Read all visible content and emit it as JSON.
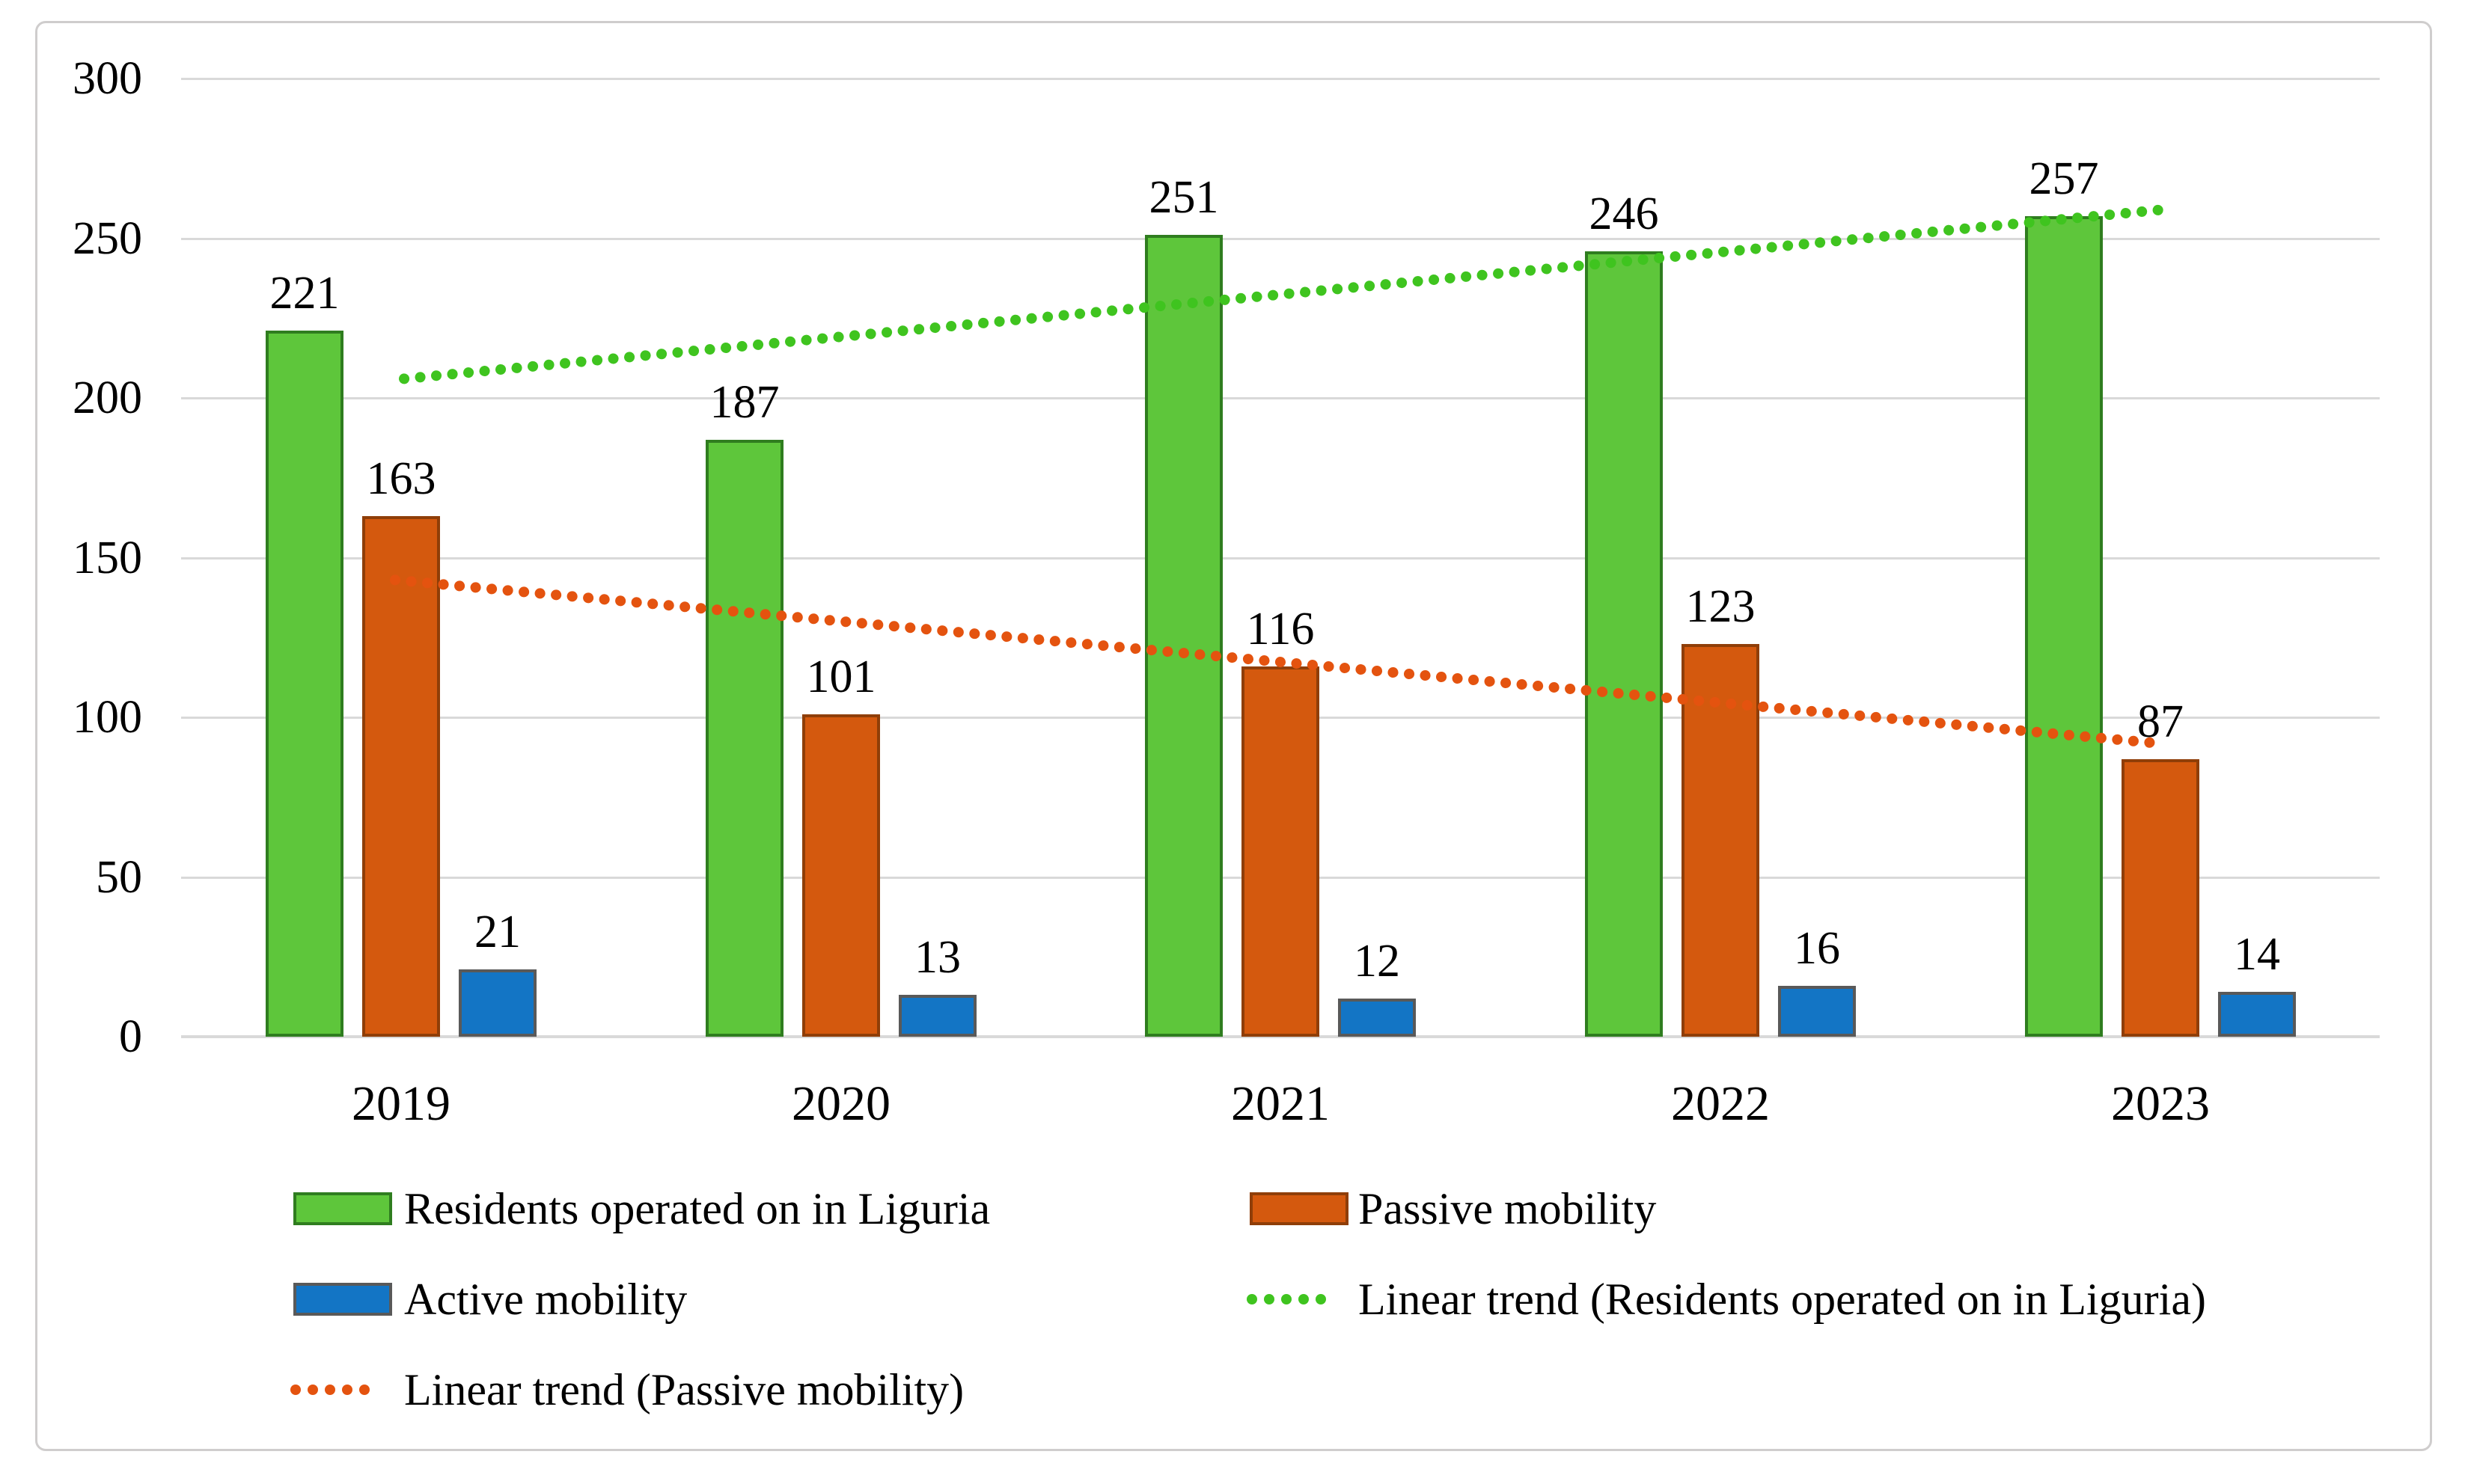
{
  "chart_data": {
    "type": "bar",
    "title": "",
    "categories": [
      "2019",
      "2020",
      "2021",
      "2022",
      "2023"
    ],
    "series": [
      {
        "name": "Residents operated on in Liguria",
        "slug": "residents",
        "type": "bar",
        "color": "#5ec63b",
        "border_color": "#2f7d1f",
        "values": [
          221,
          187,
          251,
          246,
          257
        ]
      },
      {
        "name": "Passive mobility",
        "slug": "passive",
        "type": "bar",
        "color": "#d4590e",
        "border_color": "#8f3e08",
        "values": [
          163,
          101,
          116,
          123,
          87
        ]
      },
      {
        "name": "Active mobility",
        "slug": "active",
        "type": "bar",
        "color": "#1375c5",
        "border_color": "#595959",
        "values": [
          21,
          13,
          12,
          16,
          14
        ]
      }
    ],
    "trend_lines": [
      {
        "name": "Linear trend (Residents operated on in Liguria)",
        "slug": "residents",
        "color": "#3fc41f",
        "start_value": 206,
        "end_value": 259
      },
      {
        "name": "Linear trend (Passive mobility)",
        "slug": "passive",
        "color": "#e4530f",
        "start_value": 143,
        "end_value": 92
      }
    ],
    "y_axis": {
      "min": 0,
      "max": 300,
      "tick_interval": 50,
      "ticks": [
        0,
        50,
        100,
        150,
        200,
        250,
        300
      ]
    },
    "grid": true,
    "data_labels": true,
    "legend_position": "bottom"
  },
  "legend": {
    "items": [
      {
        "label": "Residents operated on in Liguria",
        "marker": "swatch",
        "color": "#5ec63b",
        "border_color": "#2f7d1f",
        "slug": "residents"
      },
      {
        "label": "Passive mobility",
        "marker": "swatch",
        "color": "#d4590e",
        "border_color": "#8f3e08",
        "slug": "passive"
      },
      {
        "label": "Active mobility",
        "marker": "swatch",
        "color": "#1375c5",
        "border_color": "#595959",
        "slug": "active"
      },
      {
        "label": "Linear trend (Residents operated on in Liguria)",
        "marker": "dots",
        "color": "#3fc41f",
        "slug": "trend-residents"
      },
      {
        "label": "Linear trend (Passive mobility)",
        "marker": "dots",
        "color": "#e4530f",
        "slug": "trend-passive"
      }
    ]
  },
  "colors": {
    "gridline": "#d9d9d9",
    "axis_line": "#d9d9d9",
    "frame_border": "#cfcdcd",
    "text": "#000000"
  }
}
